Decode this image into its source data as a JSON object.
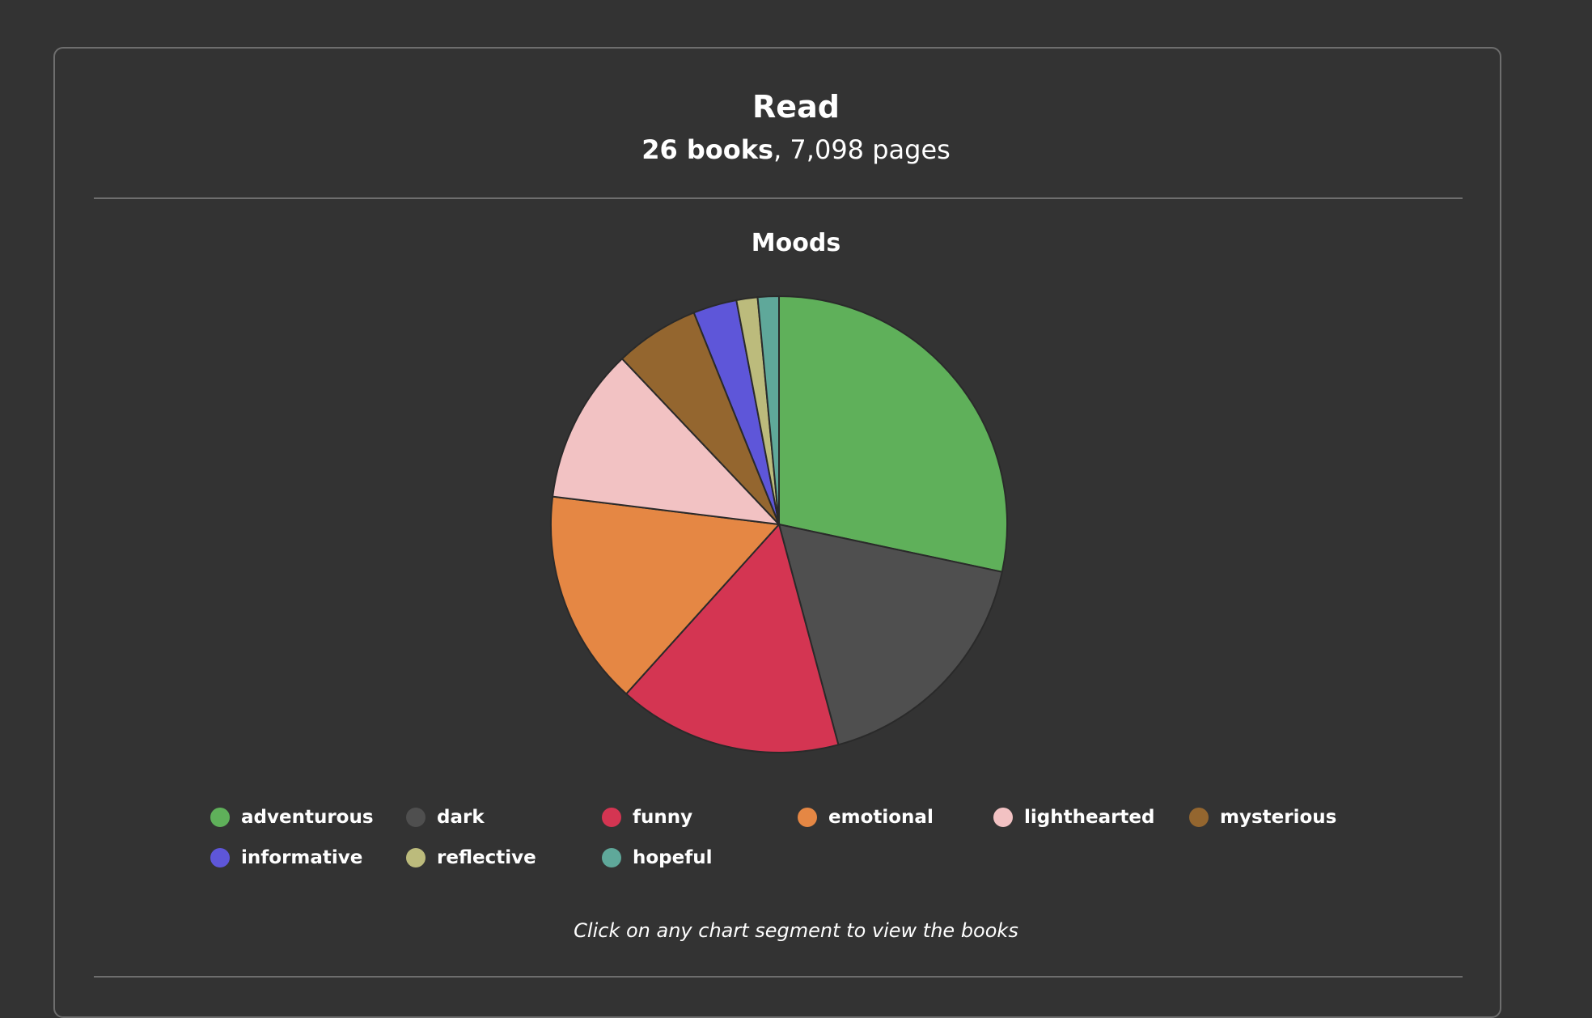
{
  "header": {
    "title": "Read",
    "books": "26 books",
    "separator": ", ",
    "pages": "7,098 pages"
  },
  "section": {
    "title": "Moods",
    "hint": "Click on any chart segment to view the books"
  },
  "chart_data": {
    "type": "pie",
    "categories": [
      "adventurous",
      "dark",
      "funny",
      "emotional",
      "lighthearted",
      "mysterious",
      "informative",
      "reflective",
      "hopeful"
    ],
    "values": [
      28.4,
      17.5,
      15.9,
      15.3,
      11.0,
      6.0,
      3.1,
      1.5,
      1.5
    ],
    "colors": [
      "#5fb05a",
      "#4f4f4f",
      "#d43552",
      "#e58744",
      "#f2c2c3",
      "#94662f",
      "#5e56d9",
      "#bcbb7c",
      "#5fa89a"
    ],
    "legend_placement": "bottom"
  }
}
